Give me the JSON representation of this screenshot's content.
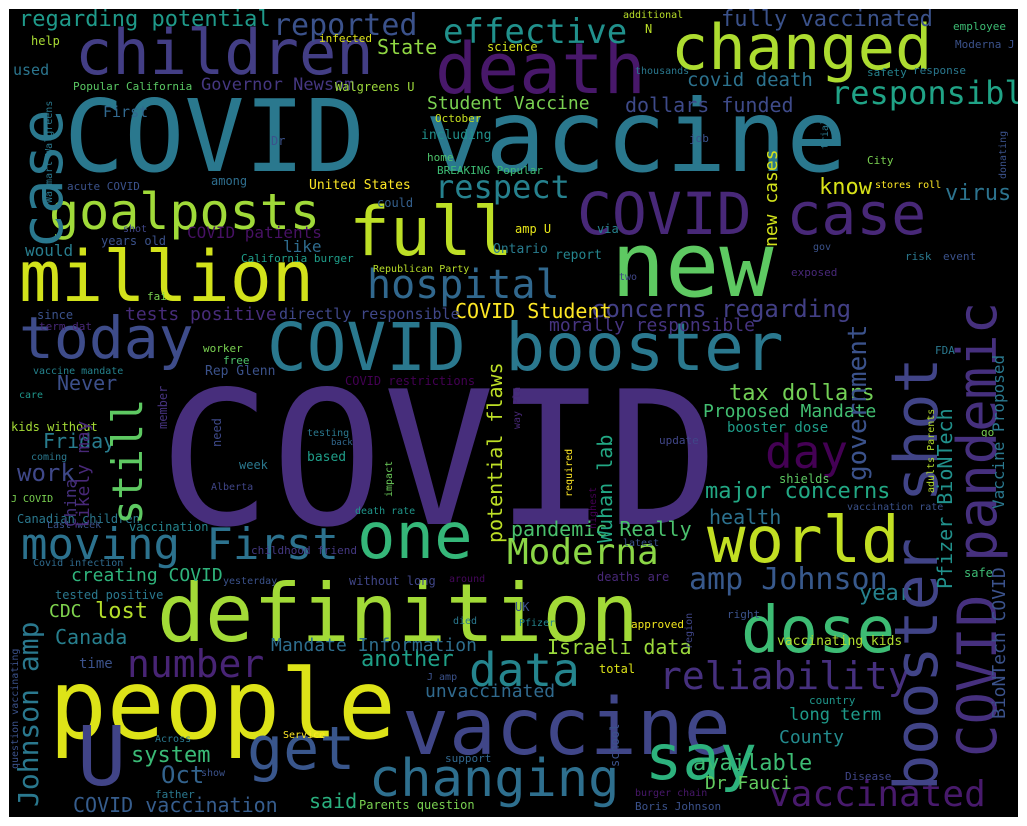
{
  "word_cloud": {
    "words": [
      {
        "text": "COVID",
        "color": "#472e7c"
      },
      {
        "text": "COVID vaccine",
        "color": "#2a788e"
      },
      {
        "text": "people",
        "color": "#dde318"
      },
      {
        "text": "definition",
        "color": "#a2da37"
      },
      {
        "text": "vaccine",
        "color": "#404688"
      },
      {
        "text": "death",
        "color": "#48186a"
      },
      {
        "text": "new",
        "color": "#5ec962"
      },
      {
        "text": "million",
        "color": "#d2e21b"
      },
      {
        "text": "children",
        "color": "#433e85"
      },
      {
        "text": "changed",
        "color": "#addc30"
      },
      {
        "text": "COVID booster",
        "color": "#2a788e"
      },
      {
        "text": "today",
        "color": "#3e4c8a"
      },
      {
        "text": "goalposts",
        "color": "#a0da39"
      },
      {
        "text": "full",
        "color": "#bddf26"
      },
      {
        "text": "one",
        "color": "#35b779"
      },
      {
        "text": "world",
        "color": "#c2df23"
      },
      {
        "text": "dose",
        "color": "#3dbc74"
      },
      {
        "text": "say",
        "color": "#2db27d"
      },
      {
        "text": "get",
        "color": "#39568c"
      },
      {
        "text": "changing",
        "color": "#2e6f8e"
      },
      {
        "text": "COVID case",
        "color": "#482878"
      },
      {
        "text": "effective",
        "color": "#21918c"
      },
      {
        "text": "reported",
        "color": "#3b528b"
      },
      {
        "text": "U",
        "color": "#414487"
      },
      {
        "text": "moving First",
        "color": "#2c728e"
      },
      {
        "text": "amp Johnson",
        "color": "#38598c"
      },
      {
        "text": "Moderna",
        "color": "#8bd646"
      },
      {
        "text": "data",
        "color": "#25858e"
      },
      {
        "text": "number",
        "color": "#482475"
      },
      {
        "text": "reliability",
        "color": "#46307e"
      },
      {
        "text": "vaccinated",
        "color": "#481a6c"
      },
      {
        "text": "hospital",
        "color": "#31688e"
      },
      {
        "text": "respect",
        "color": "#26818e"
      },
      {
        "text": "responsible",
        "color": "#20a386"
      },
      {
        "text": "day",
        "color": "#440154"
      },
      {
        "text": "concerns regarding",
        "color": "#423f85"
      },
      {
        "text": "major concerns",
        "color": "#22a884"
      },
      {
        "text": "fully vaccinated",
        "color": "#3b528b"
      },
      {
        "text": "regarding potential",
        "color": "#1f9a8a"
      },
      {
        "text": "Governor Newsom",
        "color": "#453781"
      },
      {
        "text": "State",
        "color": "#90d743"
      },
      {
        "text": "Student Vaccine",
        "color": "#7ad151"
      },
      {
        "text": "dollars funded",
        "color": "#3e4a89"
      },
      {
        "text": "covid death",
        "color": "#2c728e"
      },
      {
        "text": "COVID Student",
        "color": "#fde725"
      },
      {
        "text": "tests positive",
        "color": "#472c7a"
      },
      {
        "text": "morally responsible",
        "color": "#463480"
      },
      {
        "text": "tax dollars",
        "color": "#73d056"
      },
      {
        "text": "Proposed Mandate",
        "color": "#42be71"
      },
      {
        "text": "Never",
        "color": "#3c4f8a"
      },
      {
        "text": "Friday",
        "color": "#287c8e"
      },
      {
        "text": "work",
        "color": "#3f4889"
      },
      {
        "text": "pandemic Really",
        "color": "#4ac16d"
      },
      {
        "text": "Israeli data",
        "color": "#9bd93c"
      },
      {
        "text": "another",
        "color": "#1fa088"
      },
      {
        "text": "Canada",
        "color": "#277f8e"
      },
      {
        "text": "CDC",
        "color": "#7fd34e"
      },
      {
        "text": "lost",
        "color": "#b5de2b"
      },
      {
        "text": "creating COVID",
        "color": "#2fb47c"
      },
      {
        "text": "system",
        "color": "#3aba76"
      },
      {
        "text": "Oct",
        "color": "#33638d"
      },
      {
        "text": "COVID vaccination",
        "color": "#365d8d"
      },
      {
        "text": "said",
        "color": "#2ab07f"
      },
      {
        "text": "available",
        "color": "#3dbc74"
      },
      {
        "text": "County",
        "color": "#238a8d"
      },
      {
        "text": "long term",
        "color": "#1e9b8a"
      },
      {
        "text": "Dr Fauci",
        "color": "#62cb5f"
      },
      {
        "text": "year",
        "color": "#26828e"
      },
      {
        "text": "health",
        "color": "#2c718e"
      },
      {
        "text": "know",
        "color": "#d8e219"
      },
      {
        "text": "virus",
        "color": "#2c738e"
      },
      {
        "text": "United States",
        "color": "#fde725"
      },
      {
        "text": "Student Vaccine",
        "color": "#7ad151"
      },
      {
        "text": "Mandate Information",
        "color": "#2e6e8e"
      },
      {
        "text": "COVID patients",
        "color": "#471164"
      },
      {
        "text": "booster dose",
        "color": "#1f9e89"
      },
      {
        "text": "unvaccinated",
        "color": "#306a8e"
      },
      {
        "text": "vaccinating kids",
        "color": "#b0dd2f"
      },
      {
        "text": "approved",
        "color": "#f1e51d"
      },
      {
        "text": "would",
        "color": "#287d8e"
      },
      {
        "text": "like",
        "color": "#2f6c8e"
      },
      {
        "text": "directly responsible",
        "color": "#3f4788"
      },
      {
        "text": "Popular California",
        "color": "#5ac864"
      },
      {
        "text": "Walgreens U",
        "color": "#9dd93b"
      },
      {
        "text": "N",
        "color": "#bade28"
      },
      {
        "text": "science",
        "color": "#d0e11c"
      },
      {
        "text": "infected",
        "color": "#dde318"
      },
      {
        "text": "help",
        "color": "#a8db34"
      },
      {
        "text": "used",
        "color": "#2b758e"
      },
      {
        "text": "First",
        "color": "#31688e"
      },
      {
        "text": "Dr",
        "color": "#3b528b"
      },
      {
        "text": "October",
        "color": "#c8e020"
      },
      {
        "text": "including",
        "color": "#21918c"
      },
      {
        "text": "home",
        "color": "#4ec36b"
      },
      {
        "text": "BREAKING Popular",
        "color": "#3dbc74"
      },
      {
        "text": "among",
        "color": "#2e6e8e"
      },
      {
        "text": "acute COVID",
        "color": "#3b528b"
      },
      {
        "text": "could",
        "color": "#34608d"
      },
      {
        "text": "amp U",
        "color": "#e5e419"
      },
      {
        "text": "via",
        "color": "#26828e"
      },
      {
        "text": "Ontario",
        "color": "#287c8e"
      },
      {
        "text": "report",
        "color": "#25858e"
      },
      {
        "text": "years old",
        "color": "#3b528b"
      },
      {
        "text": "shot",
        "color": "#404688"
      },
      {
        "text": "California burger",
        "color": "#1e9d89"
      },
      {
        "text": "Republican Party",
        "color": "#b8de29"
      },
      {
        "text": "fai",
        "color": "#7ad151"
      },
      {
        "text": "since",
        "color": "#3b528b"
      },
      {
        "text": "term dat",
        "color": "#482878"
      },
      {
        "text": "worker",
        "color": "#7ad151"
      },
      {
        "text": "free",
        "color": "#4ec36b"
      },
      {
        "text": "Rep Glenn",
        "color": "#3b528b"
      },
      {
        "text": "vaccine mandate",
        "color": "#25838e"
      },
      {
        "text": "COVID restrictions",
        "color": "#440154"
      },
      {
        "text": "care",
        "color": "#1f968b"
      },
      {
        "text": "kids without",
        "color": "#a5db36"
      },
      {
        "text": "coming",
        "color": "#2a788e"
      },
      {
        "text": "J COVID",
        "color": "#7ad151"
      },
      {
        "text": "Canadian children",
        "color": "#2a788e"
      },
      {
        "text": "Last week",
        "color": "#3b528b"
      },
      {
        "text": "vaccination",
        "color": "#25858e"
      },
      {
        "text": "Covid infection",
        "color": "#2f6b8e"
      },
      {
        "text": "tested positive",
        "color": "#2a788e"
      },
      {
        "text": "time",
        "color": "#3b528b"
      },
      {
        "text": "member",
        "color": "#46337e"
      },
      {
        "text": "need",
        "color": "#3e4989"
      },
      {
        "text": "testing",
        "color": "#2a788e"
      },
      {
        "text": "back",
        "color": "#31688e"
      },
      {
        "text": "based",
        "color": "#1f9e89"
      },
      {
        "text": "week",
        "color": "#2a788e"
      },
      {
        "text": "Alberta",
        "color": "#404688"
      },
      {
        "text": "impact",
        "color": "#6ccd5a"
      },
      {
        "text": "required",
        "color": "#fde725"
      },
      {
        "text": "death rate",
        "color": "#1f968b"
      },
      {
        "text": "childhood friend",
        "color": "#453882"
      },
      {
        "text": "yesterday",
        "color": "#3b528b"
      },
      {
        "text": "without long",
        "color": "#404688"
      },
      {
        "text": "around",
        "color": "#46085c"
      },
      {
        "text": "latest",
        "color": "#3b528b"
      },
      {
        "text": "deaths are",
        "color": "#482878"
      },
      {
        "text": "UK",
        "color": "#3b528b"
      },
      {
        "text": "died",
        "color": "#2a788e"
      },
      {
        "text": "Pfizer",
        "color": "#25858e"
      },
      {
        "text": "total",
        "color": "#dde318"
      },
      {
        "text": "J amp",
        "color": "#3b528b"
      },
      {
        "text": "Service",
        "color": "#fde725"
      },
      {
        "text": "Across",
        "color": "#2a788e"
      },
      {
        "text": "show",
        "color": "#3b528b"
      },
      {
        "text": "father",
        "color": "#2a788e"
      },
      {
        "text": "support",
        "color": "#31688e"
      },
      {
        "text": "Parents question",
        "color": "#7ad151"
      },
      {
        "text": "burger chain",
        "color": "#48186a"
      },
      {
        "text": "Boris Johnson",
        "color": "#3b528b"
      },
      {
        "text": "Disease",
        "color": "#404688"
      },
      {
        "text": "country",
        "color": "#1f968b"
      },
      {
        "text": "right",
        "color": "#3b528b"
      },
      {
        "text": "safe",
        "color": "#3dbc74"
      },
      {
        "text": "additional",
        "color": "#b8de29"
      },
      {
        "text": "employee",
        "color": "#3dbc74"
      },
      {
        "text": "Moderna J",
        "color": "#3b528b"
      },
      {
        "text": "thousands",
        "color": "#2a788e"
      },
      {
        "text": "safety",
        "color": "#26828e"
      },
      {
        "text": "response",
        "color": "#2a788e"
      },
      {
        "text": "job",
        "color": "#3b528b"
      },
      {
        "text": "City",
        "color": "#7ad151"
      },
      {
        "text": "stores roll",
        "color": "#fde725"
      },
      {
        "text": "exposed",
        "color": "#482878"
      },
      {
        "text": "risk",
        "color": "#2a788e"
      },
      {
        "text": "event",
        "color": "#3b528b"
      },
      {
        "text": "two",
        "color": "#404688"
      },
      {
        "text": "gov",
        "color": "#3b528b"
      },
      {
        "text": "FDA",
        "color": "#2a788e"
      },
      {
        "text": "shields",
        "color": "#5ec962"
      },
      {
        "text": "vaccination rate",
        "color": "#3b528b"
      },
      {
        "text": "update",
        "color": "#404688"
      },
      {
        "text": "go",
        "color": "#7ad151"
      },
      {
        "text": "booster shot",
        "color": "#414487"
      },
      {
        "text": "COVID pandemic",
        "color": "#46307e"
      },
      {
        "text": "government",
        "color": "#3b528b"
      },
      {
        "text": "Pfizer BioNTech",
        "color": "#21918c"
      },
      {
        "text": "BioNTech COVID",
        "color": "#3b528b"
      },
      {
        "text": "Vaccine Proposed",
        "color": "#2a788e"
      },
      {
        "text": "case",
        "color": "#2a788e"
      },
      {
        "text": "still",
        "color": "#5ec962"
      },
      {
        "text": "Johnson amp",
        "color": "#2a788e"
      },
      {
        "text": "likely may",
        "color": "#482878"
      },
      {
        "text": "China",
        "color": "#46307e"
      },
      {
        "text": "potential flaws",
        "color": "#bddf26"
      },
      {
        "text": "Wuhan lab",
        "color": "#22a884"
      },
      {
        "text": "new cases",
        "color": "#d2e21b"
      },
      {
        "text": "highest",
        "color": "#440154"
      },
      {
        "text": "Walmart Walgreens",
        "color": "#2a788e"
      },
      {
        "text": "question vaccinating",
        "color": "#3b528b"
      },
      {
        "text": "way Pla",
        "color": "#482878"
      },
      {
        "text": "school",
        "color": "#3b528b"
      },
      {
        "text": "region",
        "color": "#404688"
      },
      {
        "text": "trial",
        "color": "#2a788e"
      },
      {
        "text": "donating",
        "color": "#3b528b"
      },
      {
        "text": "adults Parents",
        "color": "#b5de2b"
      }
    ]
  }
}
